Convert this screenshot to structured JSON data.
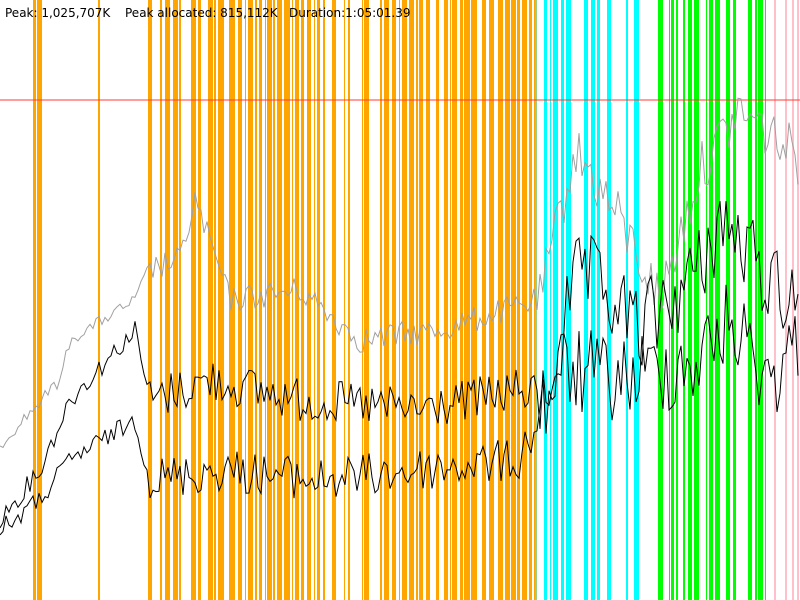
{
  "header": {
    "peak": "Peak: 1,025,707K",
    "peak_allocated": "Peak allocated: 815,112K",
    "duration": "Duration:1:05:01.39"
  }
}
